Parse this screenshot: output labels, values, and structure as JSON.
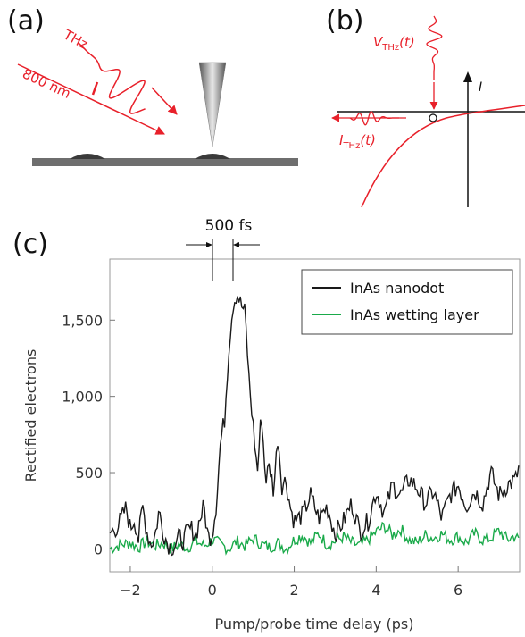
{
  "panel_a": {
    "label": "(a)",
    "thz_label": "THz",
    "laser_label": "800 nm"
  },
  "panel_b": {
    "label": "(b)",
    "v_label": "V",
    "v_sub": "THz",
    "v_arg": "(t)",
    "i_label": "I",
    "i_sub": "THz",
    "i_arg": "(t)",
    "axis_label": "I"
  },
  "panel_c": {
    "label": "(c)",
    "scale_label": "500 fs"
  },
  "chart_data": {
    "type": "line",
    "xlabel": "Pump/probe time delay (ps)",
    "ylabel": "Rectified electrons",
    "xlim": [
      -2.5,
      7.5
    ],
    "ylim": [
      -150,
      1900
    ],
    "xticks": [
      -2,
      0,
      2,
      4,
      6
    ],
    "xtick_labels": [
      "−2",
      "0",
      "2",
      "4",
      "6"
    ],
    "yticks": [
      0,
      500,
      1000,
      1500
    ],
    "ytick_labels": [
      "0",
      "500",
      "1,000",
      "1,500"
    ],
    "legend_position": "top-right",
    "series": [
      {
        "name": "InAs nanodot",
        "color": "#1a1a1a",
        "x": [
          -2.5,
          -2.3,
          -2.1,
          -2.0,
          -1.9,
          -1.8,
          -1.7,
          -1.6,
          -1.5,
          -1.4,
          -1.3,
          -1.2,
          -1.1,
          -1.0,
          -0.9,
          -0.8,
          -0.7,
          -0.6,
          -0.5,
          -0.4,
          -0.3,
          -0.2,
          -0.1,
          0.0,
          0.1,
          0.2,
          0.3,
          0.4,
          0.5,
          0.6,
          0.7,
          0.8,
          0.9,
          1.0,
          1.1,
          1.2,
          1.3,
          1.4,
          1.5,
          1.6,
          1.7,
          1.8,
          1.9,
          2.0,
          2.2,
          2.4,
          2.6,
          2.8,
          3.0,
          3.2,
          3.4,
          3.6,
          3.8,
          4.0,
          4.2,
          4.4,
          4.6,
          4.8,
          5.0,
          5.2,
          5.4,
          5.6,
          5.8,
          6.0,
          6.2,
          6.4,
          6.6,
          6.8,
          7.0,
          7.2,
          7.4,
          7.5
        ],
        "y": [
          100,
          150,
          270,
          130,
          200,
          60,
          280,
          120,
          30,
          80,
          250,
          120,
          40,
          10,
          30,
          80,
          50,
          120,
          130,
          90,
          200,
          280,
          70,
          100,
          300,
          700,
          850,
          1300,
          1600,
          1680,
          1600,
          1550,
          1100,
          800,
          500,
          900,
          450,
          550,
          380,
          750,
          420,
          450,
          280,
          180,
          220,
          350,
          200,
          280,
          100,
          180,
          300,
          120,
          180,
          380,
          230,
          420,
          350,
          460,
          400,
          300,
          380,
          200,
          350,
          420,
          280,
          380,
          300,
          500,
          350,
          420,
          450,
          550
        ],
        "noise": 22
      },
      {
        "name": "InAs wetting layer",
        "color": "#1aaa4a",
        "x": [
          -2.5,
          -2.2,
          -2.0,
          -1.8,
          -1.6,
          -1.4,
          -1.2,
          -1.0,
          -0.8,
          -0.6,
          -0.4,
          -0.2,
          0.0,
          0.2,
          0.4,
          0.6,
          0.8,
          1.0,
          1.2,
          1.4,
          1.6,
          1.8,
          2.0,
          2.2,
          2.4,
          2.6,
          2.8,
          3.0,
          3.2,
          3.4,
          3.6,
          3.8,
          4.0,
          4.2,
          4.4,
          4.6,
          4.8,
          5.0,
          5.2,
          5.4,
          5.6,
          5.8,
          6.0,
          6.2,
          6.4,
          6.6,
          6.8,
          7.0,
          7.2,
          7.4,
          7.5
        ],
        "y": [
          0,
          30,
          40,
          10,
          50,
          20,
          40,
          0,
          30,
          10,
          50,
          20,
          60,
          30,
          0,
          50,
          20,
          70,
          30,
          10,
          40,
          0,
          60,
          90,
          40,
          100,
          30,
          50,
          80,
          40,
          20,
          60,
          110,
          150,
          90,
          130,
          60,
          40,
          90,
          70,
          100,
          60,
          80,
          40,
          100,
          60,
          70,
          120,
          60,
          90,
          40
        ],
        "noise": 14
      }
    ]
  }
}
